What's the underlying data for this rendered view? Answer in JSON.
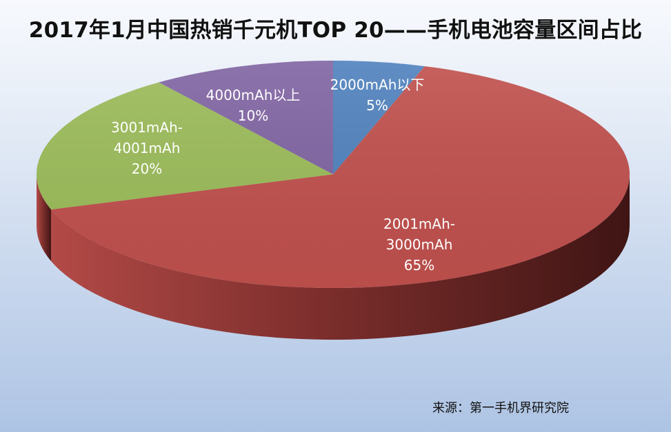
{
  "chart_data": {
    "type": "pie",
    "title": "2017年1月中国热销千元机TOP 20——手机电池容量区间占比",
    "source": "来源：第一手机界研究院",
    "slices": [
      {
        "label_lines": [
          "2000mAh以下"
        ],
        "value_label": "5%",
        "value": 5,
        "color": "#4f81bd"
      },
      {
        "label_lines": [
          "2001mAh-",
          "3000mAh"
        ],
        "value_label": "65%",
        "value": 65,
        "color": "#c0504d"
      },
      {
        "label_lines": [
          "3001mAh-",
          "4001mAh"
        ],
        "value_label": "20%",
        "value": 20,
        "color": "#9bbb59"
      },
      {
        "label_lines": [
          "4000mAh以上"
        ],
        "value_label": "10%",
        "value": 10,
        "color": "#8064a2"
      }
    ]
  }
}
